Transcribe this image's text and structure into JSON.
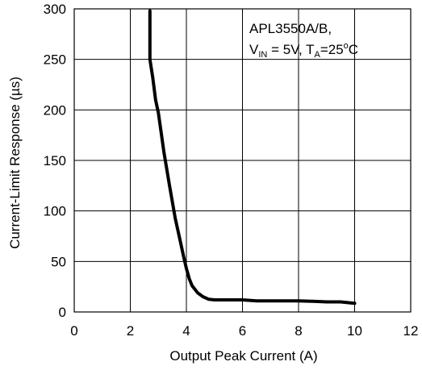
{
  "chart_data": {
    "type": "line",
    "xlabel": "Output Peak Current (A)",
    "ylabel": "Current-Limit Response (µs)",
    "xlim": [
      0,
      12
    ],
    "ylim": [
      0,
      300
    ],
    "x_ticks": [
      "0",
      "2",
      "4",
      "6",
      "8",
      "10",
      "12"
    ],
    "y_ticks": [
      "0",
      "50",
      "100",
      "150",
      "200",
      "250",
      "300"
    ],
    "grid": true,
    "annotation": {
      "line1": "APL3550A/B,",
      "vin_main": "V",
      "vin_sub": "IN",
      "vin_rest": " = 5V, T",
      "ta_sub": "A",
      "ta_rest": "=25",
      "deg": "o",
      "unit": "C"
    },
    "series": [
      {
        "color": "#000000",
        "x": [
          2.7,
          2.7,
          2.8,
          2.9,
          3.0,
          3.2,
          3.4,
          3.6,
          3.8,
          3.9,
          4.0,
          4.1,
          4.2,
          4.4,
          4.6,
          4.8,
          5.0,
          5.5,
          6.0,
          6.5,
          7.0,
          7.5,
          8.0,
          8.5,
          9.0,
          9.5,
          10.0
        ],
        "y": [
          298,
          250,
          232,
          210,
          197,
          158,
          125,
          93,
          68,
          55,
          43,
          33,
          26,
          19,
          15,
          12.5,
          12,
          12,
          12,
          11,
          11,
          11,
          11,
          10.5,
          10,
          10,
          8.5
        ]
      }
    ]
  }
}
